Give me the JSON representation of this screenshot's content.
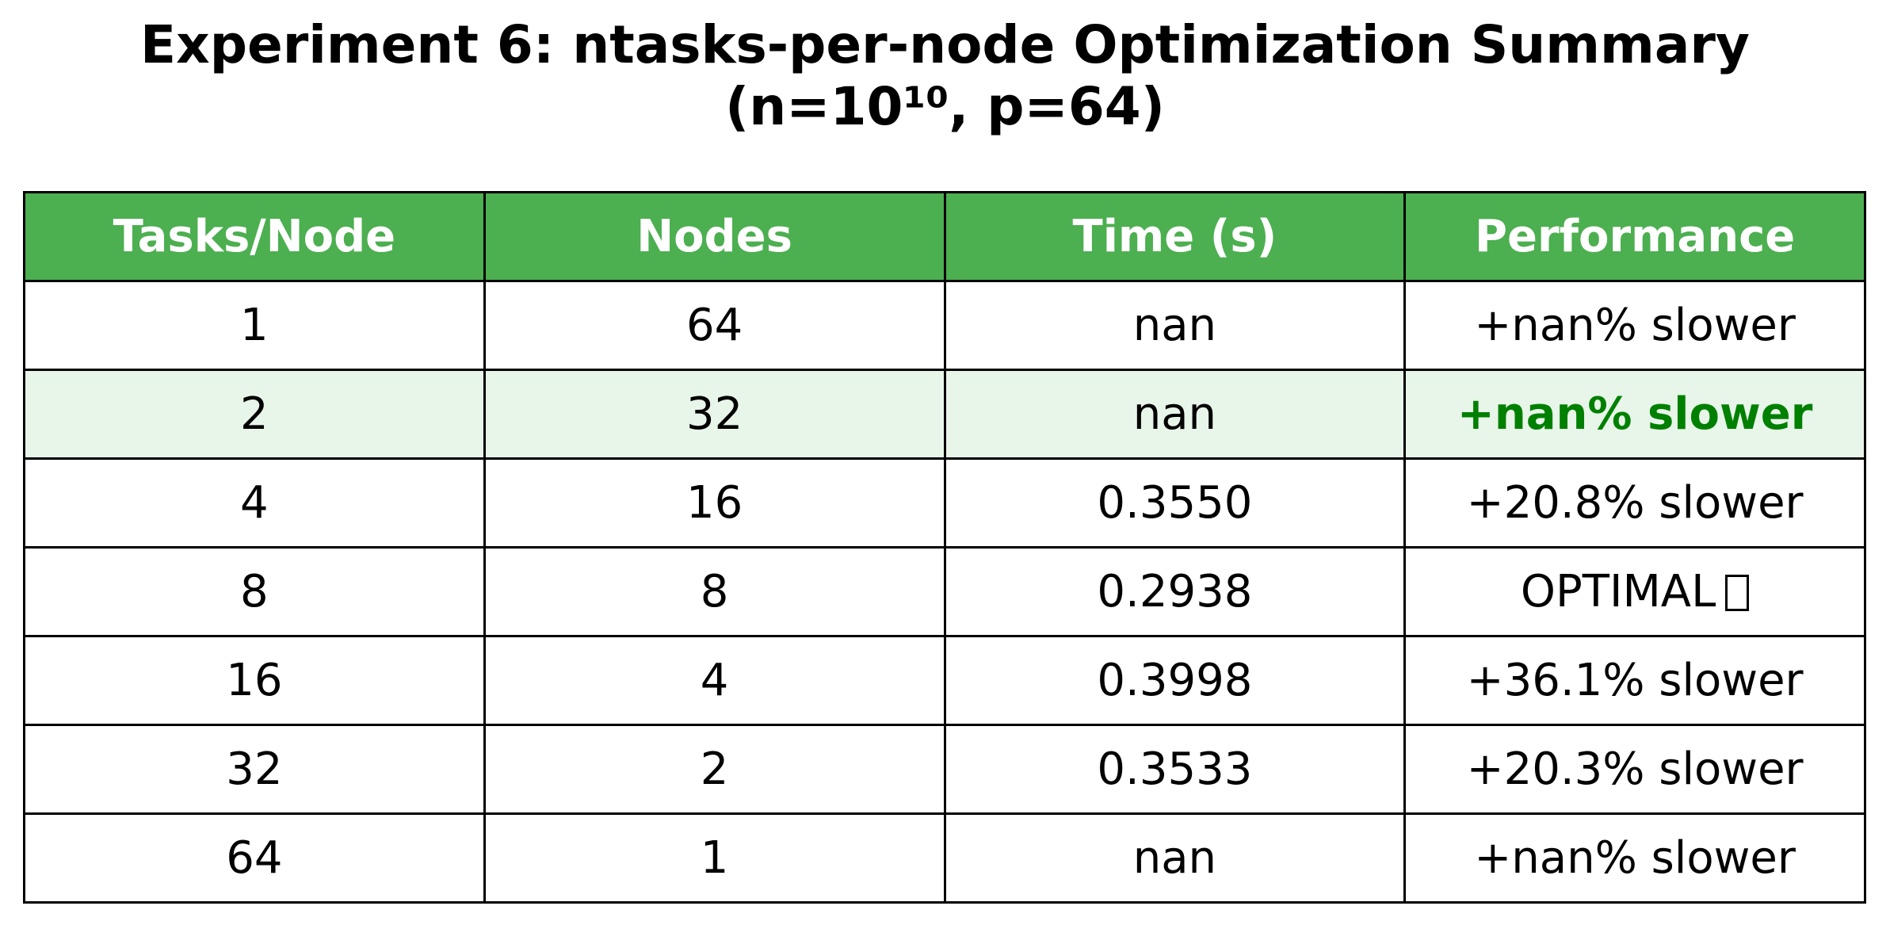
{
  "chart_data": {
    "type": "table",
    "title": "Experiment 6: ntasks-per-node Optimization Summary",
    "subtitle": "(n=10¹⁰, p=64)",
    "columns": [
      "Tasks/Node",
      "Nodes",
      "Time (s)",
      "Performance"
    ],
    "rows": [
      [
        "1",
        "64",
        "nan",
        "+nan% slower"
      ],
      [
        "2",
        "32",
        "nan",
        "+nan% slower"
      ],
      [
        "4",
        "16",
        "0.3550",
        "+20.8% slower"
      ],
      [
        "8",
        "8",
        "0.2938",
        "OPTIMAL"
      ],
      [
        "16",
        "4",
        "0.3998",
        "+36.1% slower"
      ],
      [
        "32",
        "2",
        "0.3533",
        "+20.3% slower"
      ],
      [
        "64",
        "1",
        "nan",
        "+nan% slower"
      ]
    ],
    "highlight_row": 1,
    "optimal_row": 3,
    "optimal_icon": "missing-glyph-icon",
    "colors": {
      "header_bg": "#4caf50",
      "header_text": "#ffffff",
      "highlight_bg": "#e8f5e9",
      "highlight_text": "#008000"
    }
  }
}
